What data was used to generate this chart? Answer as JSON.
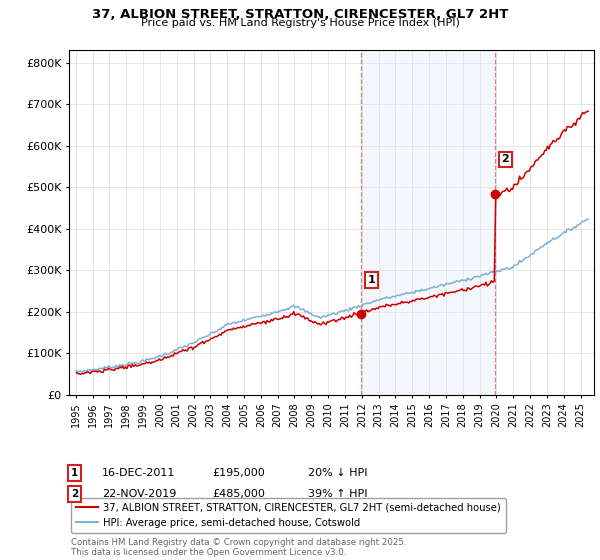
{
  "title": "37, ALBION STREET, STRATTON, CIRENCESTER, GL7 2HT",
  "subtitle": "Price paid vs. HM Land Registry's House Price Index (HPI)",
  "ylabel_ticks": [
    "£0",
    "£100K",
    "£200K",
    "£300K",
    "£400K",
    "£500K",
    "£600K",
    "£700K",
    "£800K"
  ],
  "ytick_values": [
    0,
    100000,
    200000,
    300000,
    400000,
    500000,
    600000,
    700000,
    800000
  ],
  "ylim": [
    0,
    830000
  ],
  "xlim_start": 1994.6,
  "xlim_end": 2025.8,
  "xtick_years": [
    1995,
    1996,
    1997,
    1998,
    1999,
    2000,
    2001,
    2002,
    2003,
    2004,
    2005,
    2006,
    2007,
    2008,
    2009,
    2010,
    2011,
    2012,
    2013,
    2014,
    2015,
    2016,
    2017,
    2018,
    2019,
    2020,
    2021,
    2022,
    2023,
    2024,
    2025
  ],
  "sale1_x": 2011.96,
  "sale1_y": 195000,
  "sale1_label": "1",
  "sale1_date": "16-DEC-2011",
  "sale1_price": "£195,000",
  "sale1_hpi": "20% ↓ HPI",
  "sale2_x": 2019.89,
  "sale2_y": 485000,
  "sale2_label": "2",
  "sale2_date": "22-NOV-2019",
  "sale2_price": "£485,000",
  "sale2_hpi": "39% ↑ HPI",
  "red_color": "#cc0000",
  "blue_color": "#7eb0d5",
  "plot_bg": "#ffffff",
  "legend_label_red": "37, ALBION STREET, STRATTON, CIRENCESTER, GL7 2HT (semi-detached house)",
  "legend_label_blue": "HPI: Average price, semi-detached house, Cotswold",
  "footer": "Contains HM Land Registry data © Crown copyright and database right 2025.\nThis data is licensed under the Open Government Licence v3.0."
}
